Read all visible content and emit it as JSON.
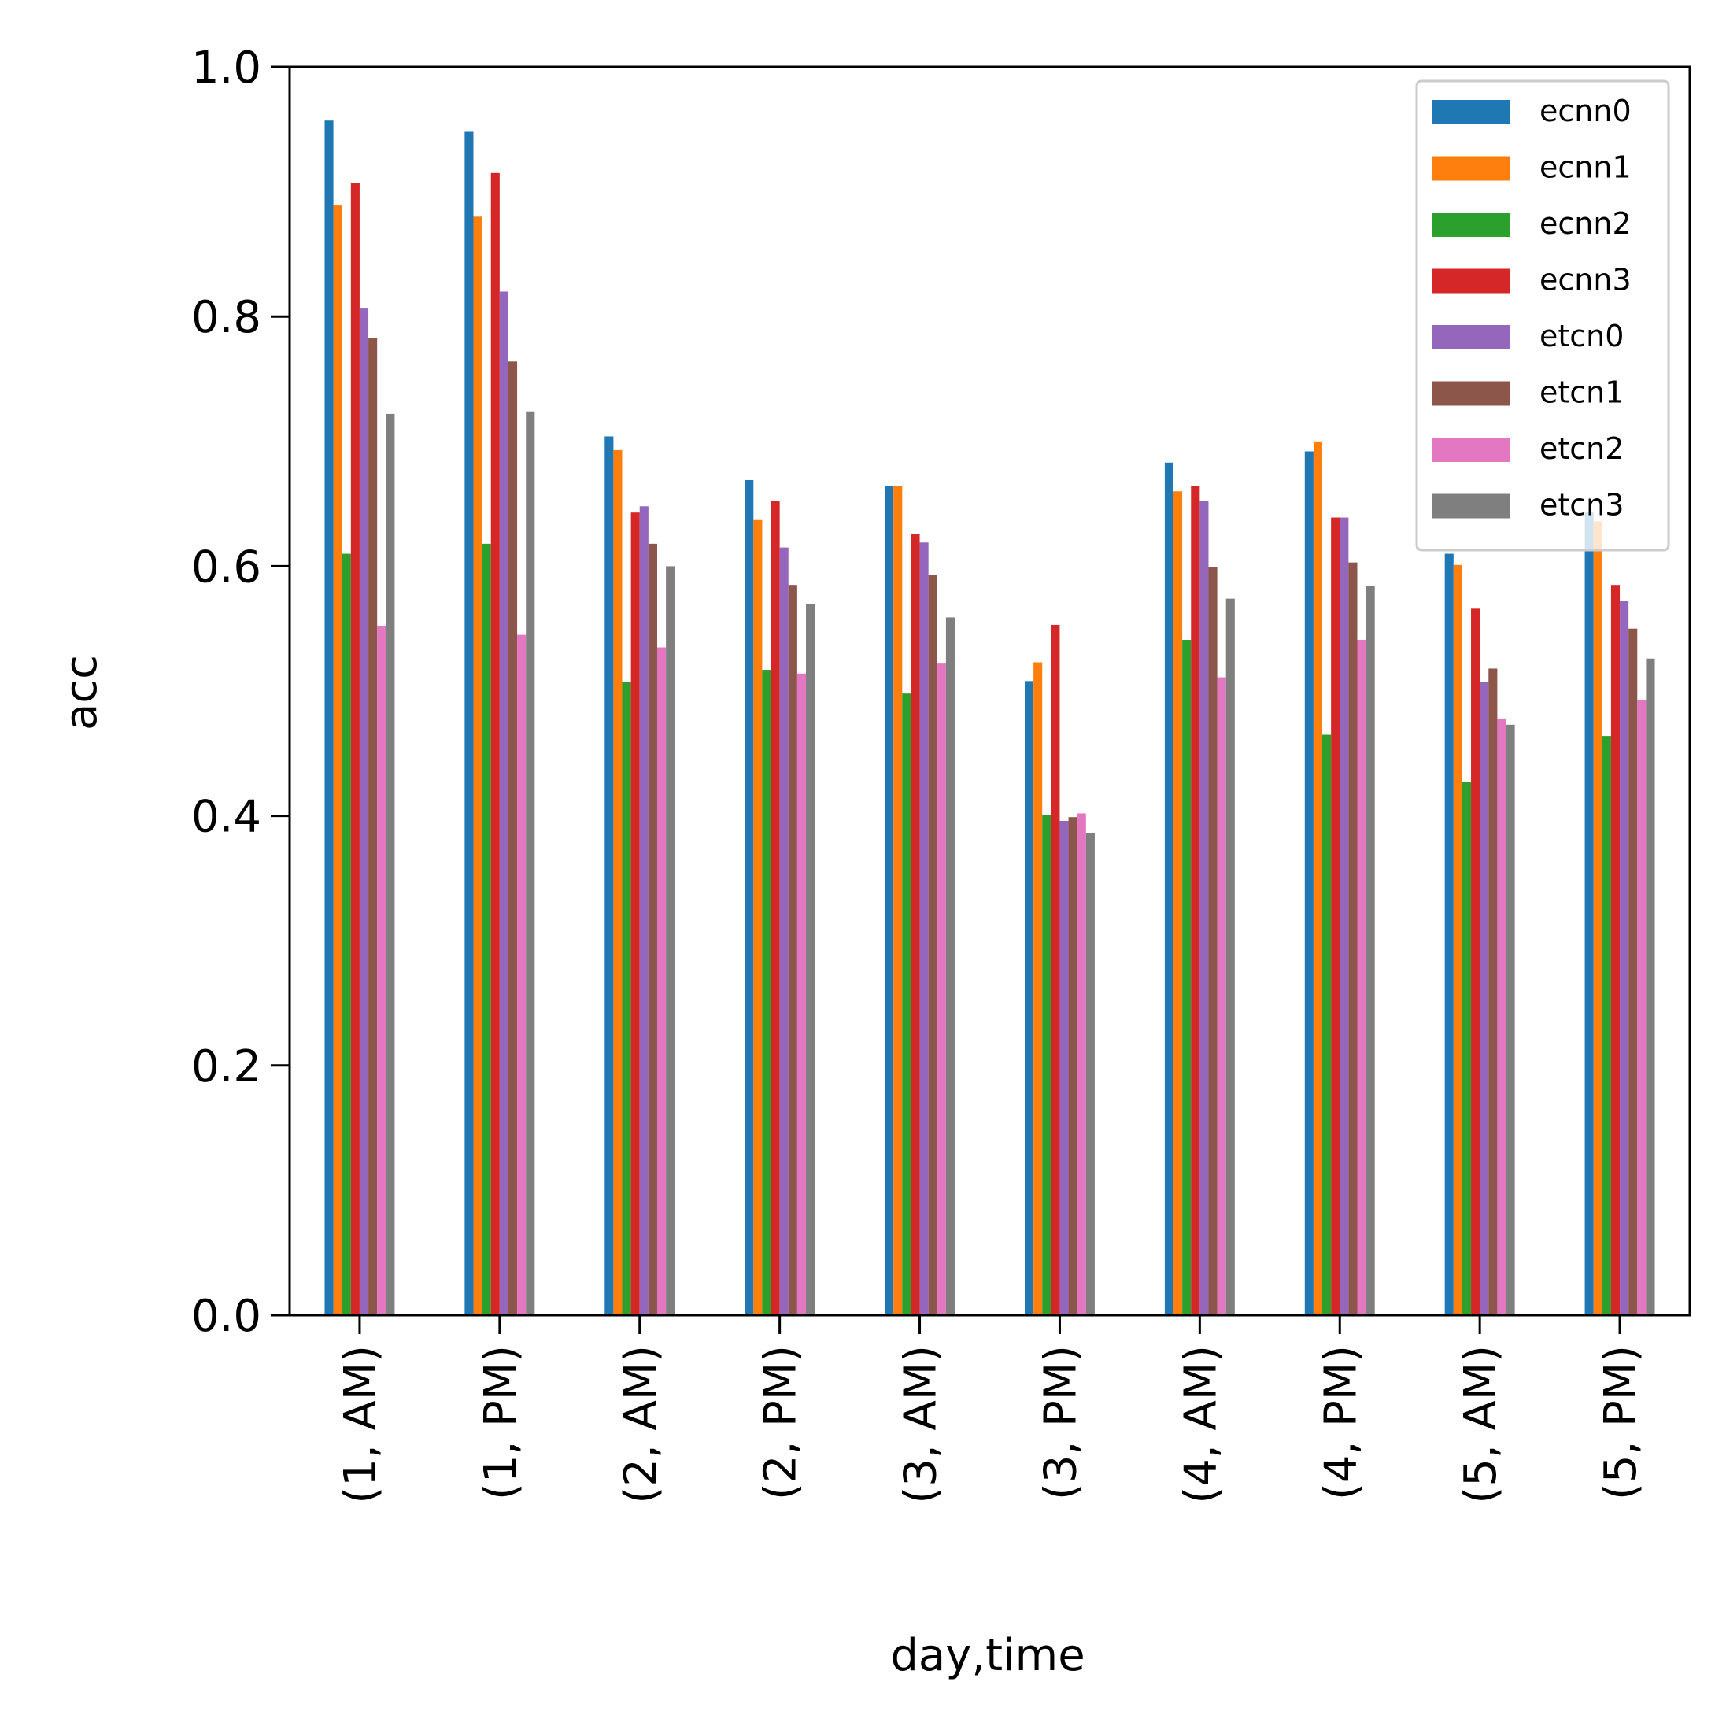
{
  "chart_data": {
    "type": "bar",
    "title": "",
    "xlabel": "day,time",
    "ylabel": "acc",
    "ylim": [
      0,
      1.0
    ],
    "yticks": [
      "0.0",
      "0.2",
      "0.4",
      "0.6",
      "0.8",
      "1.0"
    ],
    "grid": false,
    "legend_position": "top-right",
    "categories": [
      "(1, AM)",
      "(1, PM)",
      "(2, AM)",
      "(2, PM)",
      "(3, AM)",
      "(3, PM)",
      "(4, AM)",
      "(4, PM)",
      "(5, AM)",
      "(5, PM)"
    ],
    "series": [
      {
        "name": "ecnn0",
        "color": "#1f77b4",
        "values": [
          0.957,
          0.948,
          0.704,
          0.669,
          0.664,
          0.508,
          0.683,
          0.692,
          0.61,
          0.643
        ]
      },
      {
        "name": "ecnn1",
        "color": "#ff7f0e",
        "values": [
          0.889,
          0.88,
          0.693,
          0.637,
          0.664,
          0.523,
          0.66,
          0.7,
          0.601,
          0.636
        ]
      },
      {
        "name": "ecnn2",
        "color": "#2ca02c",
        "values": [
          0.61,
          0.618,
          0.507,
          0.517,
          0.498,
          0.401,
          0.541,
          0.465,
          0.427,
          0.464
        ]
      },
      {
        "name": "ecnn3",
        "color": "#d62728",
        "values": [
          0.907,
          0.915,
          0.643,
          0.652,
          0.626,
          0.553,
          0.664,
          0.639,
          0.566,
          0.585
        ]
      },
      {
        "name": "etcn0",
        "color": "#9467bd",
        "values": [
          0.807,
          0.82,
          0.648,
          0.615,
          0.619,
          0.396,
          0.652,
          0.639,
          0.507,
          0.572
        ]
      },
      {
        "name": "etcn1",
        "color": "#8c564b",
        "values": [
          0.783,
          0.764,
          0.618,
          0.585,
          0.593,
          0.399,
          0.599,
          0.603,
          0.518,
          0.55
        ]
      },
      {
        "name": "etcn2",
        "color": "#e377c2",
        "values": [
          0.552,
          0.545,
          0.535,
          0.514,
          0.522,
          0.402,
          0.511,
          0.541,
          0.478,
          0.493
        ]
      },
      {
        "name": "etcn3",
        "color": "#7f7f7f",
        "values": [
          0.722,
          0.724,
          0.6,
          0.57,
          0.559,
          0.386,
          0.574,
          0.584,
          0.473,
          0.526
        ]
      }
    ]
  }
}
